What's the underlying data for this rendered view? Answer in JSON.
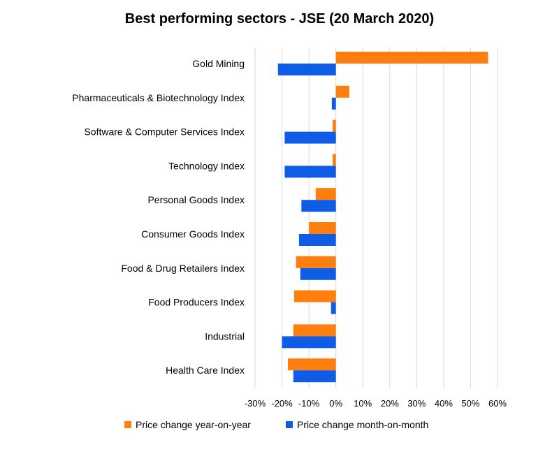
{
  "title": "Best performing sectors - JSE (20 March 2020)",
  "colors": {
    "year": "#FF7F0E",
    "month": "#0F5CE6",
    "grid": "#D9D9D9"
  },
  "chart_data": {
    "type": "bar",
    "orientation": "horizontal",
    "title": "Best performing sectors - JSE (20 March 2020)",
    "xlabel": "",
    "ylabel": "",
    "xlim": [
      -0.3,
      0.6
    ],
    "xticks": [
      -0.3,
      -0.2,
      -0.1,
      0,
      0.1,
      0.2,
      0.3,
      0.4,
      0.5,
      0.6
    ],
    "xtick_labels": [
      "-30%",
      "-20%",
      "-10%",
      "0%",
      "10%",
      "20%",
      "30%",
      "40%",
      "50%",
      "60%"
    ],
    "grid": "vertical",
    "legend_position": "bottom",
    "categories": [
      "Gold Mining",
      "Pharmaceuticals & Biotechnology Index",
      "Software & Computer Services Index",
      "Technology Index",
      "Personal Goods Index",
      "Consumer Goods Index",
      "Food & Drug Retailers Index",
      "Food Producers Index",
      "Industrial",
      "Health Care Index"
    ],
    "series": [
      {
        "name": "Price change year-on-year",
        "color": "#FF7F0E",
        "values": [
          0.565,
          0.05,
          -0.012,
          -0.012,
          -0.075,
          -0.1,
          -0.148,
          -0.155,
          -0.158,
          -0.178
        ]
      },
      {
        "name": "Price change month-on-month",
        "color": "#0F5CE6",
        "values": [
          -0.215,
          -0.015,
          -0.19,
          -0.19,
          -0.128,
          -0.137,
          -0.132,
          -0.018,
          -0.2,
          -0.158
        ]
      }
    ]
  }
}
